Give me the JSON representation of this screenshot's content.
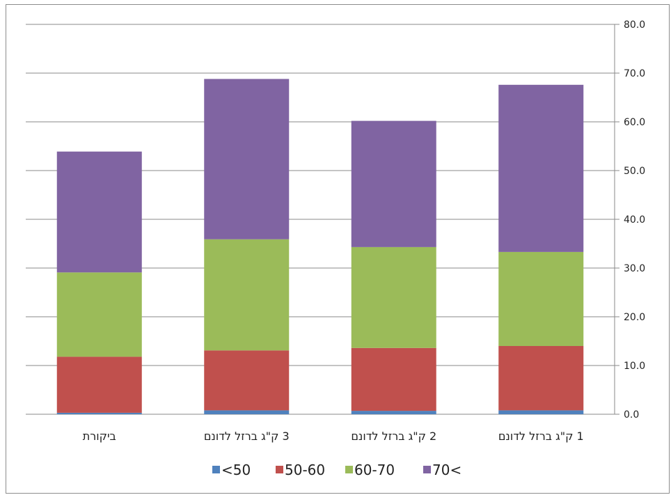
{
  "chart_data": {
    "type": "bar",
    "stacked": true,
    "categories": [
      "ביקורת",
      "3 ק\"ג ברזל לדונם",
      "2 ק\"ג ברזל לדונם",
      "1 ק\"ג ברזל לדונם"
    ],
    "series": [
      {
        "name": "<50",
        "color": "#4f81bd",
        "values": [
          0.3,
          0.8,
          0.7,
          0.8
        ]
      },
      {
        "name": "50-60",
        "color": "#c0504d",
        "values": [
          11.5,
          12.3,
          12.9,
          13.2
        ]
      },
      {
        "name": "60-70",
        "color": "#9bbb59",
        "values": [
          17.3,
          22.8,
          20.7,
          19.3
        ]
      },
      {
        "name": "70<",
        "color": "#8064a2",
        "values": [
          24.8,
          32.9,
          25.9,
          34.3
        ]
      }
    ],
    "y_axis": {
      "min": 0,
      "max": 80,
      "step": 10,
      "position": "right",
      "tick_labels": [
        "0.0",
        "10.0",
        "20.0",
        "30.0",
        "40.0",
        "50.0",
        "60.0",
        "70.0",
        "80.0"
      ]
    },
    "grid": true,
    "legend_position": "bottom",
    "title": "",
    "xlabel": "",
    "ylabel": ""
  }
}
